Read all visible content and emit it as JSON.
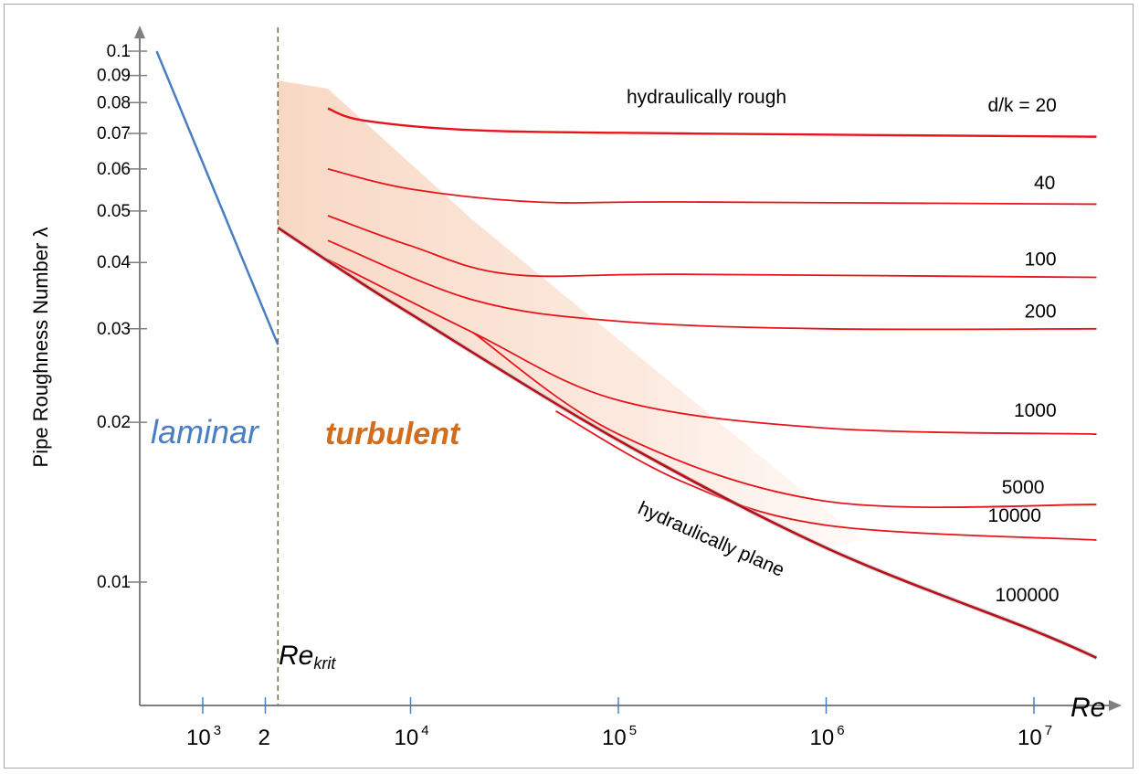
{
  "chart_data": {
    "type": "line",
    "scale": {
      "x": "log",
      "y": "log"
    },
    "ylabel": "Pipe Roughness Number λ",
    "xlabel": "Re",
    "xlim": [
      400,
      22000000
    ],
    "ylim": [
      0.0065,
      0.11
    ],
    "y_ticks": [
      {
        "value": 0.1,
        "label": "0.1"
      },
      {
        "value": 0.09,
        "label": "0.09"
      },
      {
        "value": 0.08,
        "label": "0.08"
      },
      {
        "value": 0.07,
        "label": "0.07"
      },
      {
        "value": 0.06,
        "label": "0.06"
      },
      {
        "value": 0.05,
        "label": "0.05"
      },
      {
        "value": 0.04,
        "label": "0.04"
      },
      {
        "value": 0.03,
        "label": "0.03"
      },
      {
        "value": 0.02,
        "label": "0.02"
      },
      {
        "value": 0.01,
        "label": "0.01"
      }
    ],
    "x_ticks": [
      {
        "value": 1000,
        "base": "10",
        "exp": "3"
      },
      {
        "value": 2000,
        "base": "2",
        "exp": ""
      },
      {
        "value": 10000,
        "base": "10",
        "exp": "4"
      },
      {
        "value": 100000,
        "base": "10",
        "exp": "5"
      },
      {
        "value": 1000000,
        "base": "10",
        "exp": "6"
      },
      {
        "value": 10000000,
        "base": "10",
        "exp": "7"
      }
    ],
    "critical": {
      "re": 2300,
      "label_main": "Re",
      "label_sub": "krit"
    },
    "region_labels": {
      "laminar": "laminar",
      "turbulent": "turbulent",
      "rough": "hydraulically rough",
      "plane": "hydraulically plane"
    },
    "laminar_line": {
      "points": [
        [
          600,
          0.1
        ],
        [
          2300,
          0.028
        ]
      ]
    },
    "plane_line": {
      "points": [
        [
          2300,
          0.0465
        ],
        [
          5000,
          0.038
        ],
        [
          10000,
          0.032
        ],
        [
          100000,
          0.0185
        ],
        [
          1000000,
          0.0116
        ],
        [
          10000000,
          0.0081
        ],
        [
          20000000,
          0.0072
        ]
      ]
    },
    "transition_band": {
      "points": [
        [
          2300,
          0.088
        ],
        [
          4000,
          0.085
        ],
        [
          20000,
          0.048
        ],
        [
          1500000,
          0.012
        ],
        [
          1000000,
          0.0116
        ],
        [
          100000,
          0.0185
        ],
        [
          10000,
          0.032
        ],
        [
          2300,
          0.0465
        ]
      ]
    },
    "series": [
      {
        "label": "d/k = 20",
        "points": [
          [
            4000,
            0.078
          ],
          [
            6000,
            0.074
          ],
          [
            20000,
            0.071
          ],
          [
            200000,
            0.07
          ],
          [
            20000000,
            0.069
          ]
        ]
      },
      {
        "label": "40",
        "points": [
          [
            4000,
            0.06
          ],
          [
            10000,
            0.055
          ],
          [
            40000,
            0.052
          ],
          [
            200000,
            0.052
          ],
          [
            20000000,
            0.0515
          ]
        ]
      },
      {
        "label": "100",
        "points": [
          [
            4000,
            0.049
          ],
          [
            10000,
            0.043
          ],
          [
            30000,
            0.038
          ],
          [
            200000,
            0.038
          ],
          [
            20000000,
            0.0375
          ]
        ]
      },
      {
        "label": "200",
        "points": [
          [
            4000,
            0.044
          ],
          [
            20000,
            0.034
          ],
          [
            100000,
            0.031
          ],
          [
            1000000,
            0.03
          ],
          [
            20000000,
            0.03
          ]
        ]
      },
      {
        "label": "1000",
        "points": [
          [
            4000,
            0.0405
          ],
          [
            20000,
            0.0295
          ],
          [
            100000,
            0.022
          ],
          [
            1000000,
            0.0195
          ],
          [
            20000000,
            0.019
          ]
        ]
      },
      {
        "label": "5000",
        "points": [
          [
            20000,
            0.0295
          ],
          [
            100000,
            0.019
          ],
          [
            1000000,
            0.0142
          ],
          [
            20000000,
            0.014
          ]
        ]
      },
      {
        "label": "10000",
        "points": [
          [
            50000,
            0.021
          ],
          [
            200000,
            0.0155
          ],
          [
            1000000,
            0.0128
          ],
          [
            20000000,
            0.012
          ]
        ]
      },
      {
        "label": "100000",
        "points": [
          [
            100000,
            0.0185
          ],
          [
            1000000,
            0.0116
          ],
          [
            10000000,
            0.0081
          ]
        ]
      }
    ],
    "series_label_positions": [
      {
        "label": "d/k = 20",
        "re": 6000000,
        "lambda": 0.077
      },
      {
        "label": "40",
        "re": 10000000,
        "lambda": 0.055
      },
      {
        "label": "100",
        "re": 9000000,
        "lambda": 0.0395
      },
      {
        "label": "200",
        "re": 9000000,
        "lambda": 0.0315
      },
      {
        "label": "1000",
        "re": 8000000,
        "lambda": 0.0205
      },
      {
        "label": "5000",
        "re": 7000000,
        "lambda": 0.0147
      },
      {
        "label": "10000",
        "re": 6000000,
        "lambda": 0.013
      },
      {
        "label": "100000",
        "re": 6500000,
        "lambda": 0.0092
      }
    ],
    "colors": {
      "laminar": "#4a7ec2",
      "turbulent_text": "#d06d1e",
      "curves": "#e8141c",
      "plane": "#b8101a",
      "band": "#f9dccb",
      "axis": "#7f7f7f",
      "critical_line": "#6d6d4a"
    }
  }
}
